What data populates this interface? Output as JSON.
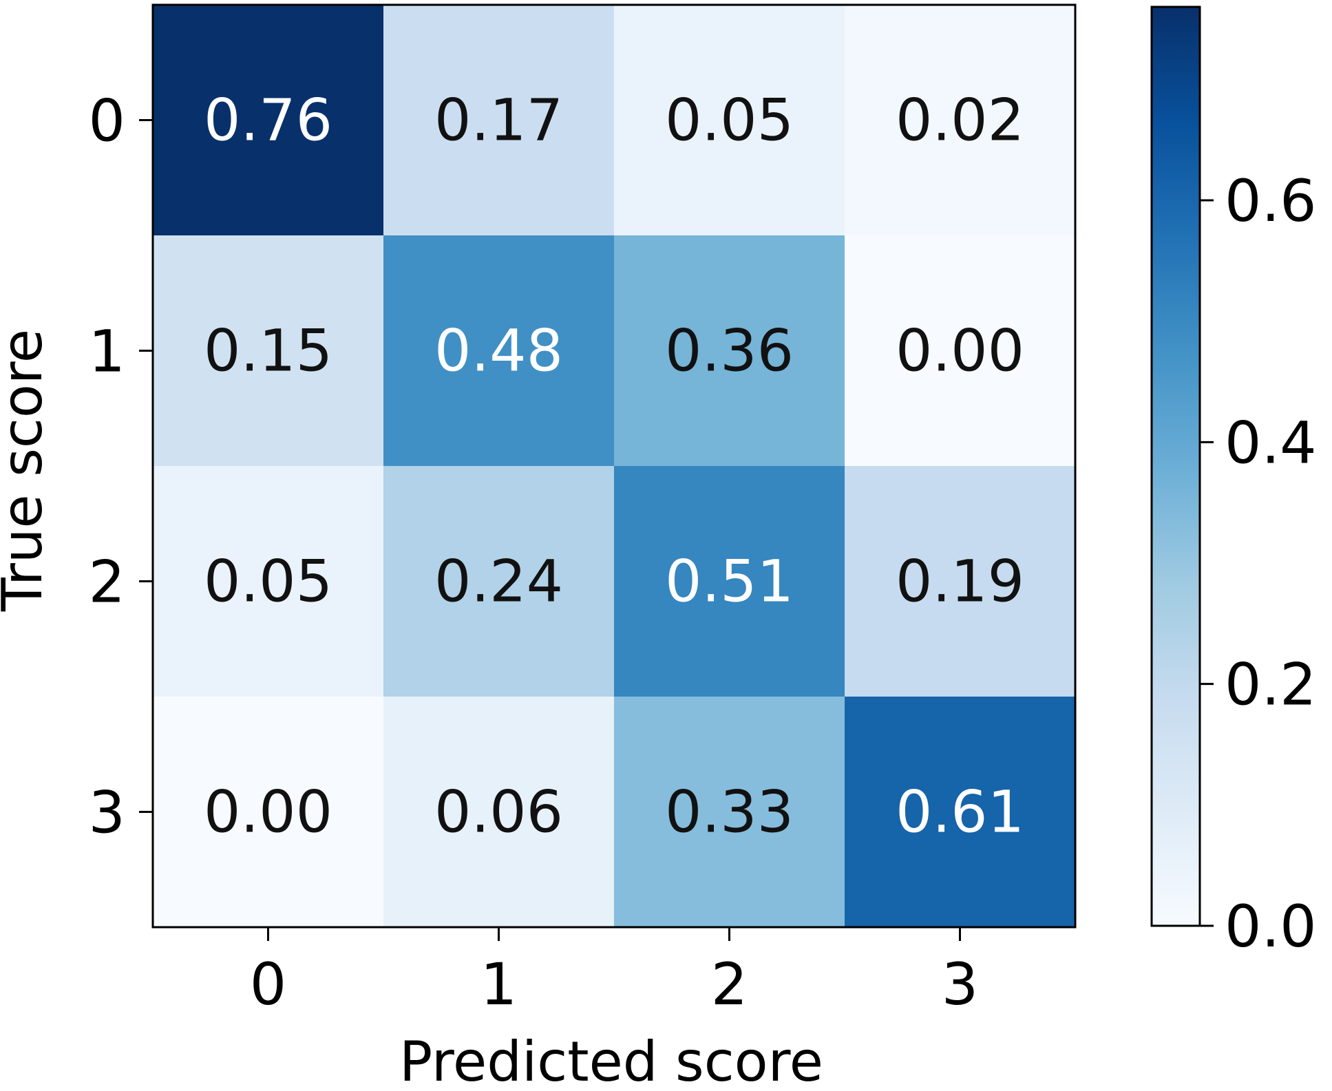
{
  "chart_data": {
    "type": "heatmap",
    "title": "",
    "xlabel": "Predicted score",
    "ylabel": "True score",
    "x_categories": [
      "0",
      "1",
      "2",
      "3"
    ],
    "y_categories": [
      "0",
      "1",
      "2",
      "3"
    ],
    "values": [
      [
        0.76,
        0.17,
        0.05,
        0.02
      ],
      [
        0.15,
        0.48,
        0.36,
        0.0
      ],
      [
        0.05,
        0.24,
        0.51,
        0.19
      ],
      [
        0.0,
        0.06,
        0.33,
        0.61
      ]
    ],
    "value_labels": [
      [
        "0.76",
        "0.17",
        "0.05",
        "0.02"
      ],
      [
        "0.15",
        "0.48",
        "0.36",
        "0.00"
      ],
      [
        "0.05",
        "0.24",
        "0.51",
        "0.19"
      ],
      [
        "0.00",
        "0.06",
        "0.33",
        "0.61"
      ]
    ],
    "colormap": "Blues",
    "colorbar": {
      "range": [
        0,
        0.76
      ],
      "ticks": [
        0.0,
        0.2,
        0.4,
        0.6
      ],
      "tick_labels": [
        "0.0",
        "0.2",
        "0.4",
        "0.6"
      ],
      "position": "right"
    },
    "grid": false
  }
}
